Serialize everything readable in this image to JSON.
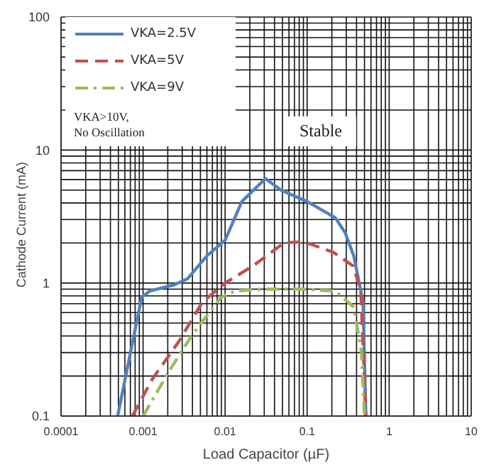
{
  "chart_data": {
    "type": "line",
    "xlabel": "Load Capacitor (µF)",
    "ylabel": "Cathode Current (mA)",
    "log": "xy",
    "grid": true,
    "legend": "top left",
    "marker": "none",
    "xlim": [
      0.0001,
      10
    ],
    "ylim": [
      0.1,
      100
    ],
    "xticks": [
      0.0001,
      {
        "value": 0.0002,
        "label": null
      },
      {
        "value": 0.0003,
        "label": null
      },
      {
        "value": 0.0004,
        "label": null
      },
      {
        "value": 0.0005,
        "label": null
      },
      {
        "value": 0.0006,
        "label": null
      },
      {
        "value": 0.0007,
        "label": null
      },
      {
        "value": 0.0008,
        "label": null
      },
      {
        "value": 0.0009,
        "label": null
      },
      0.001,
      {
        "value": 0.002,
        "label": null
      },
      {
        "value": 0.003,
        "label": null
      },
      {
        "value": 0.004,
        "label": null
      },
      {
        "value": 0.005,
        "label": null
      },
      {
        "value": 0.006,
        "label": null
      },
      {
        "value": 0.007,
        "label": null
      },
      {
        "value": 0.008,
        "label": null
      },
      {
        "value": 0.009,
        "label": null
      },
      0.01,
      {
        "value": 0.02,
        "label": null
      },
      {
        "value": 0.03,
        "label": null
      },
      {
        "value": 0.04,
        "label": null
      },
      {
        "value": 0.05,
        "label": null
      },
      {
        "value": 0.06,
        "label": null
      },
      {
        "value": 0.07,
        "label": null
      },
      {
        "value": 0.08,
        "label": null
      },
      {
        "value": 0.09,
        "label": null
      },
      0.1,
      {
        "value": 0.2,
        "label": null
      },
      {
        "value": 0.3,
        "label": null
      },
      {
        "value": 0.4,
        "label": null
      },
      {
        "value": 0.5,
        "label": null
      },
      {
        "value": 0.6,
        "label": null
      },
      {
        "value": 0.7,
        "label": null
      },
      {
        "value": 0.8,
        "label": null
      },
      {
        "value": 0.9,
        "label": null
      },
      1,
      {
        "value": 2,
        "label": null
      },
      {
        "value": 3,
        "label": null
      },
      {
        "value": 4,
        "label": null
      },
      {
        "value": 5,
        "label": null
      },
      {
        "value": 6,
        "label": null
      },
      {
        "value": 7,
        "label": null
      },
      {
        "value": 8,
        "label": null
      },
      {
        "value": 9,
        "label": null
      },
      10
    ],
    "yticks": [
      0.1,
      {
        "value": 0.2,
        "label": null
      },
      {
        "value": 0.3,
        "label": null
      },
      {
        "value": 0.4,
        "label": null
      },
      {
        "value": 0.5,
        "label": null
      },
      {
        "value": 0.6,
        "label": null
      },
      {
        "value": 0.7,
        "label": null
      },
      {
        "value": 0.8,
        "label": null
      },
      {
        "value": 0.9,
        "label": null
      },
      1,
      {
        "value": 2,
        "label": null
      },
      {
        "value": 3,
        "label": null
      },
      {
        "value": 4,
        "label": null
      },
      {
        "value": 5,
        "label": null
      },
      {
        "value": 6,
        "label": null
      },
      {
        "value": 7,
        "label": null
      },
      {
        "value": 8,
        "label": null
      },
      {
        "value": 9,
        "label": null
      },
      10,
      {
        "value": 20,
        "label": null
      },
      {
        "value": 30,
        "label": null
      },
      {
        "value": 40,
        "label": null
      },
      {
        "value": 50,
        "label": null
      },
      {
        "value": 60,
        "label": null
      },
      {
        "value": 70,
        "label": null
      },
      {
        "value": 80,
        "label": null
      },
      {
        "value": 90,
        "label": null
      },
      100
    ],
    "series": [
      {
        "name": "VKA=2.5V",
        "color": "#4f81bd",
        "line_style": "solid",
        "x": [
          0.00049,
          0.00096,
          0.0012,
          0.0024,
          0.0035,
          0.006,
          0.01,
          0.016,
          0.031,
          0.048,
          0.1,
          0.22,
          0.29,
          0.37,
          0.48,
          0.52
        ],
        "values": [
          0.1,
          0.78,
          0.87,
          0.97,
          1.08,
          1.6,
          2.1,
          4.1,
          6.1,
          5,
          4.1,
          3.1,
          2.4,
          1.6,
          0.72,
          0.1
        ]
      },
      {
        "name": "VKA=5V",
        "color": "#c0504d",
        "line_style": "dashed",
        "x": [
          0.00074,
          0.0013,
          0.0027,
          0.0053,
          0.01,
          0.022,
          0.052,
          0.09,
          0.21,
          0.36,
          0.45,
          0.52
        ],
        "values": [
          0.1,
          0.19,
          0.36,
          0.72,
          1,
          1.35,
          2,
          2.05,
          1.7,
          1.35,
          0.9,
          0.1
        ]
      },
      {
        "name": "VKA=9V",
        "color": "#9bbb59",
        "line_style": "dashdot",
        "x": [
          0.001,
          0.0021,
          0.004,
          0.0089,
          0.013,
          0.029,
          0.081,
          0.22,
          0.37,
          0.46,
          0.5
        ],
        "values": [
          0.1,
          0.22,
          0.41,
          0.78,
          0.87,
          0.9,
          0.9,
          0.87,
          0.66,
          0.3,
          0.1
        ]
      }
    ],
    "annotations": [
      "VKA>10V,\nNo Oscillation",
      "Stable"
    ]
  }
}
